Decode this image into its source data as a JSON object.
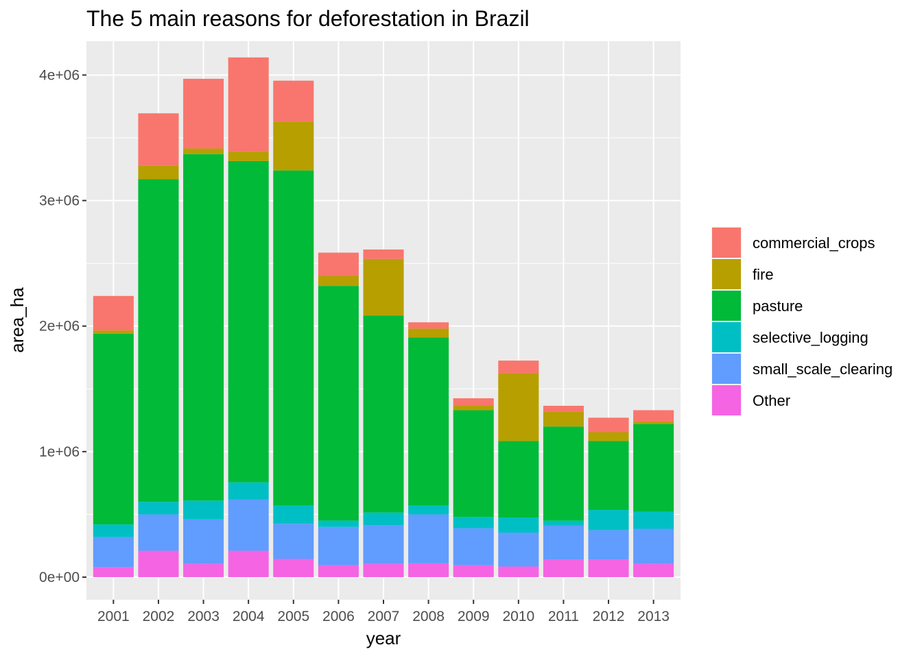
{
  "chart_data": {
    "type": "bar",
    "stacked": true,
    "title": "The 5 main reasons for deforestation in Brazil",
    "xlabel": "year",
    "ylabel": "area_ha",
    "categories": [
      "2001",
      "2002",
      "2003",
      "2004",
      "2005",
      "2006",
      "2007",
      "2008",
      "2009",
      "2010",
      "2011",
      "2012",
      "2013"
    ],
    "ylim": [
      -180000,
      4270000
    ],
    "yticks": [
      0,
      1000000,
      2000000,
      3000000,
      4000000
    ],
    "ytick_labels": [
      "0e+00",
      "1e+06",
      "2e+06",
      "3e+06",
      "4e+06"
    ],
    "grid": true,
    "legend_position": "right",
    "series": [
      {
        "name": "Other",
        "color": "#F564E3",
        "values": [
          80000,
          210000,
          105000,
          210000,
          145000,
          95000,
          105000,
          110000,
          95000,
          85000,
          140000,
          140000,
          105000
        ]
      },
      {
        "name": "small_scale_clearing",
        "color": "#619CFF",
        "values": [
          240000,
          290000,
          355000,
          410000,
          280000,
          305000,
          310000,
          390000,
          295000,
          270000,
          270000,
          235000,
          280000
        ]
      },
      {
        "name": "selective_logging",
        "color": "#00BFC4",
        "values": [
          100000,
          100000,
          150000,
          135000,
          145000,
          50000,
          100000,
          70000,
          90000,
          120000,
          40000,
          160000,
          135000
        ]
      },
      {
        "name": "pasture",
        "color": "#00BA38",
        "values": [
          1520000,
          2570000,
          2760000,
          2560000,
          2670000,
          1870000,
          1570000,
          1340000,
          850000,
          610000,
          750000,
          550000,
          700000
        ]
      },
      {
        "name": "fire",
        "color": "#B79F00",
        "values": [
          25000,
          110000,
          45000,
          75000,
          390000,
          80000,
          450000,
          70000,
          40000,
          540000,
          120000,
          70000,
          20000
        ]
      },
      {
        "name": "commercial_crops",
        "color": "#F8766D",
        "values": [
          275000,
          415000,
          555000,
          750000,
          325000,
          185000,
          75000,
          50000,
          55000,
          100000,
          45000,
          115000,
          90000
        ]
      }
    ],
    "legend_order": [
      "commercial_crops",
      "fire",
      "pasture",
      "selective_logging",
      "small_scale_clearing",
      "Other"
    ]
  }
}
